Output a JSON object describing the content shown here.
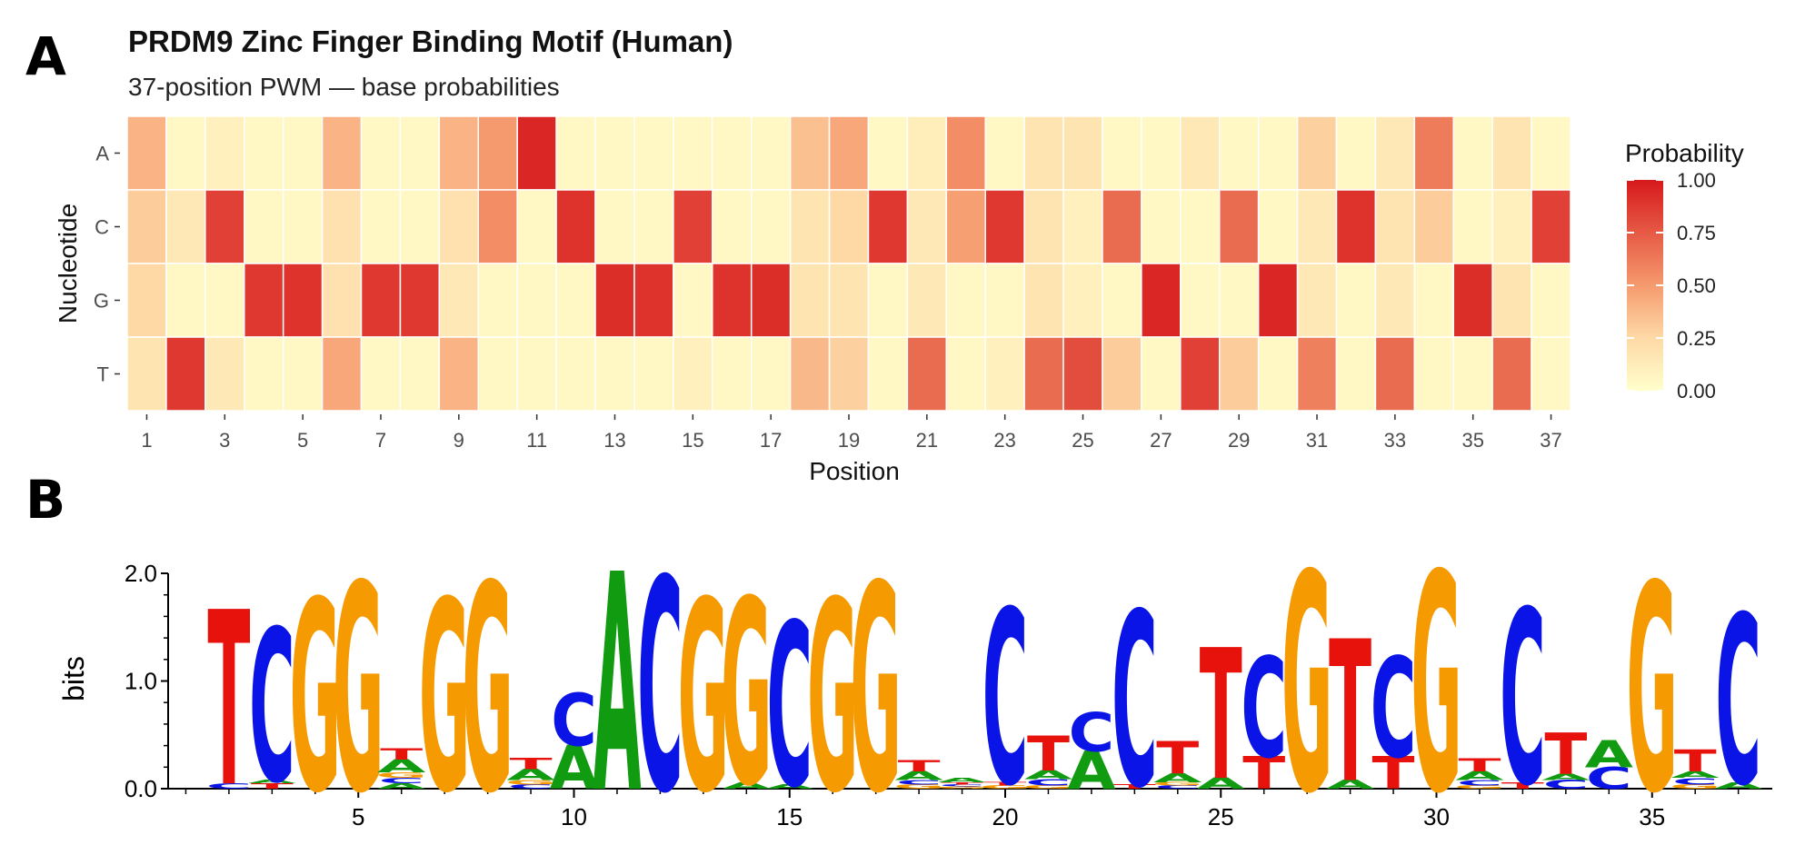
{
  "panels": {
    "a": "A",
    "b": "B"
  },
  "chart_data": [
    {
      "type": "heatmap",
      "title": "PRDM9 Zinc Finger Binding Motif (Human)",
      "subtitle": "37-position PWM — base probabilities",
      "xlabel": "Position",
      "ylabel": "Nucleotide",
      "rows": [
        "A",
        "C",
        "G",
        "T"
      ],
      "x_tick_labels": [
        "1",
        "3",
        "5",
        "7",
        "9",
        "11",
        "13",
        "15",
        "17",
        "19",
        "21",
        "23",
        "25",
        "27",
        "29",
        "31",
        "33",
        "35",
        "37"
      ],
      "legend": {
        "title": "Probability",
        "ticks": [
          "1.00",
          "0.75",
          "0.50",
          "0.25",
          "0.00"
        ],
        "low_color": "#ffffcc",
        "mid_low_color": "#fed9a6",
        "mid_color": "#f59a6e",
        "high_color": "#d7191c",
        "range": [
          0,
          1
        ],
        "placement": "right"
      },
      "values": {
        "A": [
          0.4,
          0.05,
          0.1,
          0.05,
          0.05,
          0.4,
          0.05,
          0.05,
          0.4,
          0.5,
          0.95,
          0.05,
          0.05,
          0.05,
          0.05,
          0.05,
          0.05,
          0.35,
          0.45,
          0.05,
          0.12,
          0.55,
          0.05,
          0.18,
          0.18,
          0.05,
          0.05,
          0.15,
          0.05,
          0.05,
          0.28,
          0.05,
          0.15,
          0.62,
          0.05,
          0.18,
          0.05
        ],
        "C": [
          0.3,
          0.15,
          0.85,
          0.05,
          0.05,
          0.2,
          0.05,
          0.05,
          0.2,
          0.55,
          0.05,
          0.9,
          0.05,
          0.05,
          0.85,
          0.05,
          0.05,
          0.18,
          0.25,
          0.88,
          0.15,
          0.48,
          0.88,
          0.18,
          0.1,
          0.68,
          0.05,
          0.05,
          0.68,
          0.05,
          0.15,
          0.9,
          0.18,
          0.3,
          0.05,
          0.1,
          0.85
        ],
        "G": [
          0.25,
          0.05,
          0.05,
          0.88,
          0.9,
          0.2,
          0.88,
          0.88,
          0.15,
          0.05,
          0.05,
          0.05,
          0.92,
          0.9,
          0.05,
          0.9,
          0.92,
          0.18,
          0.18,
          0.05,
          0.15,
          0.05,
          0.05,
          0.18,
          0.1,
          0.05,
          0.95,
          0.05,
          0.05,
          0.95,
          0.15,
          0.05,
          0.15,
          0.05,
          0.92,
          0.18,
          0.05
        ],
        "T": [
          0.18,
          0.88,
          0.15,
          0.05,
          0.05,
          0.45,
          0.05,
          0.05,
          0.4,
          0.05,
          0.05,
          0.05,
          0.05,
          0.05,
          0.1,
          0.05,
          0.05,
          0.38,
          0.28,
          0.05,
          0.68,
          0.05,
          0.1,
          0.68,
          0.8,
          0.3,
          0.05,
          0.85,
          0.3,
          0.05,
          0.6,
          0.05,
          0.68,
          0.05,
          0.05,
          0.68,
          0.05
        ]
      }
    },
    {
      "type": "sequence_logo",
      "ylabel": "bits",
      "ylim": [
        0,
        2.0
      ],
      "y_tick_labels": [
        "0.0",
        "1.0",
        "2.0"
      ],
      "x_tick_labels": [
        "5",
        "10",
        "15",
        "20",
        "25",
        "30",
        "35"
      ],
      "x_range": [
        1,
        37
      ],
      "letter_colors": {
        "A": "#109b10",
        "C": "#0a14e6",
        "G": "#f59a00",
        "T": "#e8120c"
      },
      "stacks": [
        [],
        [
          [
            "C",
            0.05
          ],
          [
            "T",
            1.6
          ]
        ],
        [
          [
            "T",
            0.05
          ],
          [
            "A",
            0.03
          ],
          [
            "C",
            1.4
          ]
        ],
        [
          [
            "G",
            1.75
          ]
        ],
        [
          [
            "G",
            1.9
          ]
        ],
        [
          [
            "A",
            0.05
          ],
          [
            "C",
            0.05
          ],
          [
            "G",
            0.05
          ],
          [
            "A",
            0.12
          ],
          [
            "T",
            0.1
          ]
        ],
        [
          [
            "G",
            1.75
          ]
        ],
        [
          [
            "G",
            1.9
          ]
        ],
        [
          [
            "C",
            0.04
          ],
          [
            "G",
            0.04
          ],
          [
            "A",
            0.1
          ],
          [
            "T",
            0.1
          ]
        ],
        [
          [
            "A",
            0.4
          ],
          [
            "C",
            0.48
          ]
        ],
        [
          [
            "A",
            2.0
          ]
        ],
        [
          [
            "C",
            1.95
          ]
        ],
        [
          [
            "G",
            1.75
          ]
        ],
        [
          [
            "A",
            0.06
          ],
          [
            "G",
            1.7
          ]
        ],
        [
          [
            "A",
            0.04
          ],
          [
            "C",
            1.5
          ]
        ],
        [
          [
            "G",
            1.75
          ]
        ],
        [
          [
            "G",
            1.9
          ]
        ],
        [
          [
            "G",
            0.04
          ],
          [
            "C",
            0.04
          ],
          [
            "A",
            0.08
          ],
          [
            "T",
            0.1
          ]
        ],
        [
          [
            "G",
            0.02
          ],
          [
            "C",
            0.02
          ],
          [
            "T",
            0.02
          ],
          [
            "A",
            0.04
          ]
        ],
        [
          [
            "G",
            0.03
          ],
          [
            "T",
            0.03
          ],
          [
            "C",
            1.6
          ]
        ],
        [
          [
            "G",
            0.03
          ],
          [
            "C",
            0.06
          ],
          [
            "A",
            0.08
          ],
          [
            "T",
            0.32
          ]
        ],
        [
          [
            "A",
            0.35
          ],
          [
            "C",
            0.36
          ]
        ],
        [
          [
            "T",
            0.04
          ],
          [
            "C",
            1.6
          ]
        ],
        [
          [
            "C",
            0.03
          ],
          [
            "G",
            0.03
          ],
          [
            "A",
            0.08
          ],
          [
            "T",
            0.3
          ]
        ],
        [
          [
            "A",
            0.1
          ],
          [
            "T",
            1.2
          ]
        ],
        [
          [
            "T",
            0.3
          ],
          [
            "C",
            0.92
          ]
        ],
        [
          [
            "G",
            2.0
          ]
        ],
        [
          [
            "A",
            0.08
          ],
          [
            "T",
            1.3
          ]
        ],
        [
          [
            "T",
            0.3
          ],
          [
            "C",
            0.92
          ]
        ],
        [
          [
            "G",
            2.0
          ]
        ],
        [
          [
            "G",
            0.03
          ],
          [
            "C",
            0.05
          ],
          [
            "A",
            0.08
          ],
          [
            "T",
            0.12
          ]
        ],
        [
          [
            "T",
            0.06
          ],
          [
            "C",
            1.6
          ]
        ],
        [
          [
            "C",
            0.08
          ],
          [
            "A",
            0.06
          ],
          [
            "T",
            0.38
          ]
        ],
        [
          [
            "C",
            0.2
          ],
          [
            "A",
            0.25
          ]
        ],
        [
          [
            "G",
            1.9
          ]
        ],
        [
          [
            "G",
            0.04
          ],
          [
            "C",
            0.06
          ],
          [
            "A",
            0.06
          ],
          [
            "T",
            0.2
          ]
        ],
        [
          [
            "A",
            0.06
          ],
          [
            "C",
            1.55
          ]
        ]
      ]
    }
  ]
}
